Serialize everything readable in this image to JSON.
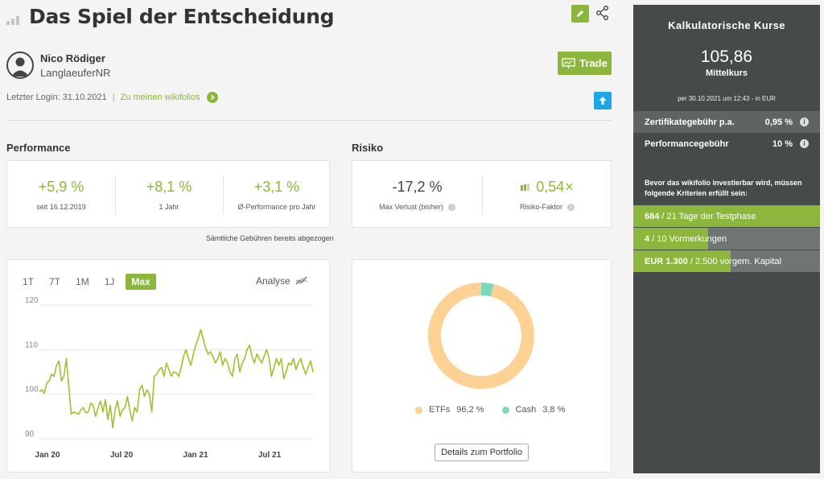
{
  "header": {
    "title": "Das Spiel der Entscheidung",
    "trade_label": "Trade"
  },
  "user": {
    "name": "Nico Rödiger",
    "handle": "LanglaeuferNR",
    "last_login": "Letzter Login: 31.10.2021",
    "separator": "|",
    "link": "Zu meinen wikifolios"
  },
  "performance": {
    "title": "Performance",
    "items": [
      {
        "value": "+5,9 %",
        "label": "seit 16.12.2019"
      },
      {
        "value": "+8,1 %",
        "label": "1 Jahr"
      },
      {
        "value": "+3,1 %",
        "label": "Ø-Performance pro Jahr"
      }
    ],
    "fees_note": "Sämtliche Gebühren bereits abgezogen"
  },
  "risk": {
    "title": "Risiko",
    "items": [
      {
        "value": "-17,2 %",
        "label": "Max Verlust (bisher)"
      },
      {
        "value": "0,54",
        "unit": "×",
        "label": "Risiko-Faktor"
      }
    ]
  },
  "chart_controls": {
    "tabs": [
      "1T",
      "7T",
      "1M",
      "1J",
      "Max"
    ],
    "active": "Max",
    "analyse": "Analyse"
  },
  "chart_data": [
    {
      "type": "line",
      "title": "",
      "x_ticks": [
        "Jan 20",
        "Jul 20",
        "Jan 21",
        "Jul 21"
      ],
      "y_ticks": [
        90,
        100,
        110,
        120
      ],
      "ylim": [
        90,
        120
      ],
      "color": "#9dc22e",
      "series": [
        {
          "values": [
            100.5,
            101,
            100.2,
            102.5,
            103,
            104.5,
            104,
            106.5,
            107.5,
            103,
            104,
            108,
            102,
            95.5,
            96,
            95.8,
            95.5,
            96.5,
            97,
            95.8,
            96,
            98,
            97.5,
            95,
            97,
            98.5,
            96,
            98.8,
            94.3,
            97.5,
            92.5,
            96.5,
            98.5,
            95,
            96.5,
            97,
            99.5,
            96.5,
            94,
            97,
            96,
            101,
            102,
            99.5,
            101,
            100,
            96,
            104,
            104.5,
            105.5,
            106,
            104,
            107,
            105.5,
            104,
            105,
            104.8,
            104,
            106,
            108.5,
            110,
            108,
            106.5,
            109,
            111,
            112.5,
            114.5,
            112.5,
            110.5,
            109,
            109.5,
            108.5,
            107,
            108,
            109.5,
            106.5,
            108,
            107,
            105,
            104,
            108,
            109,
            105,
            107,
            108,
            110,
            111,
            108.5,
            107,
            109,
            108,
            107,
            108.5,
            110,
            108,
            104,
            106,
            108,
            106.5,
            108,
            103.5,
            105,
            107,
            106.5,
            108,
            105.5,
            107,
            108,
            106,
            104.5,
            106,
            107.5,
            105
          ]
        }
      ]
    },
    {
      "type": "pie",
      "categories": [
        "ETFs",
        "Cash"
      ],
      "values": [
        96.2,
        3.8
      ],
      "labels": [
        "96,2 %",
        "3,8 %"
      ],
      "colors": [
        "#fdd093",
        "#7dd8bf"
      ]
    }
  ],
  "portfolio_button": "Details zum Portfolio",
  "sidebar": {
    "title": "Kalkulatorische Kurse",
    "price": "105,86",
    "price_label": "Mittelkurs",
    "date": "per 30.10.2021 um 12:43 - in EUR",
    "fees": [
      {
        "label": "Zertifikategebühr p.a.",
        "value": "0,95 %"
      },
      {
        "label": "Performancegebühr",
        "value": "10 %"
      }
    ],
    "criteria_text": "Bevor das wikifolio investierbar wird, müssen folgende Kriterien erfüllt sein:",
    "progress": [
      {
        "strong": "684",
        "rest": " / 21 Tage der Testphase",
        "fraction": 1.0
      },
      {
        "strong": "4",
        "rest": " / 10 Vormerkungen",
        "fraction": 0.4
      },
      {
        "strong": "EUR 1.300",
        "rest": " / 2.500 vorgem. Kapital",
        "fraction": 0.52
      }
    ],
    "colors": {
      "panel": "#454a4b",
      "accent": "#8cb63c",
      "track": "#6f7475"
    }
  }
}
